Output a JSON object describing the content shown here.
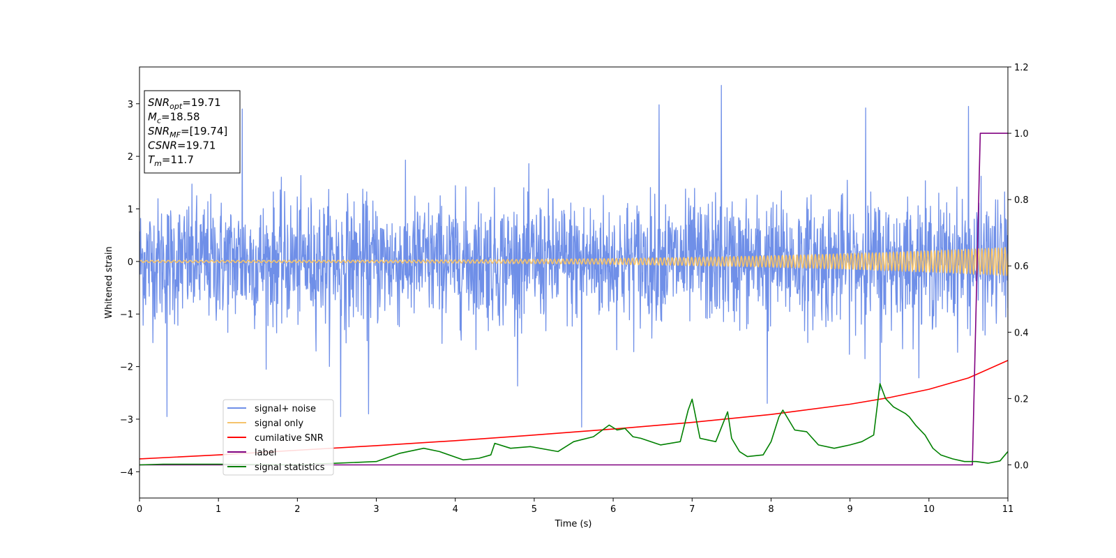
{
  "chart_data": {
    "type": "line",
    "xlabel": "Time (s)",
    "ylabel": "Whitened strain",
    "xlim": [
      0,
      11
    ],
    "ylim_left": [
      -4.5,
      3.7
    ],
    "ylim_right": [
      -0.1,
      1.2
    ],
    "x_ticks": [
      0,
      1,
      2,
      3,
      4,
      5,
      6,
      7,
      8,
      9,
      10,
      11
    ],
    "y_ticks_left": [
      3,
      2,
      1,
      0,
      -1,
      -2,
      -3,
      -4
    ],
    "y_tick_labels_left": [
      "3",
      "2",
      "1",
      "0",
      "−1",
      "−2",
      "−3",
      "−4"
    ],
    "y_ticks_right": [
      1.2,
      1.0,
      0.8,
      0.6,
      0.4,
      0.2,
      0.0
    ],
    "y_tick_labels_right": [
      "1.2",
      "1.0",
      "0.8",
      "0.6",
      "0.4",
      "0.2",
      "0.0"
    ],
    "legend_position": "lower-left",
    "annotation": {
      "lines": [
        {
          "base": "SNR",
          "sub": "opt",
          "rest": "=19.71"
        },
        {
          "base": "M",
          "sub": "c",
          "rest": "=18.58"
        },
        {
          "base": "SNR",
          "sub": "MF",
          "rest": "=[19.74]"
        },
        {
          "base": "CSNR",
          "sub": "",
          "rest": "=19.71"
        },
        {
          "base": "T",
          "sub": "m",
          "rest": "=11.7"
        }
      ]
    },
    "series": [
      {
        "name": "signal+ noise",
        "axis": "left",
        "color": "#6f8fe8",
        "kind": "noise",
        "std": 0.95,
        "peaks": [
          [
            0.35,
            -2.95
          ],
          [
            1.3,
            2.9
          ],
          [
            2.55,
            -2.95
          ],
          [
            2.9,
            -2.9
          ],
          [
            5.6,
            -3.15
          ],
          [
            6.58,
            2.98
          ],
          [
            7.37,
            3.35
          ],
          [
            7.95,
            -2.7
          ],
          [
            9.2,
            2.92
          ],
          [
            10.5,
            2.95
          ],
          [
            9.38,
            -2.45
          ]
        ]
      },
      {
        "name": "signal only",
        "axis": "left",
        "color": "#f5c36b",
        "kind": "chirp",
        "amplitude_start": 0.02,
        "amplitude_end": 0.27
      },
      {
        "name": "cumilative SNR",
        "axis": "right",
        "color": "#ff0000",
        "x": [
          0,
          1,
          2,
          3,
          4,
          5,
          6,
          7,
          8,
          9,
          9.5,
          10,
          10.5,
          11
        ],
        "y": [
          0.018,
          0.03,
          0.044,
          0.058,
          0.073,
          0.09,
          0.108,
          0.128,
          0.152,
          0.183,
          0.203,
          0.228,
          0.262,
          0.315
        ]
      },
      {
        "name": "label",
        "axis": "right",
        "color": "#800080",
        "x": [
          0,
          10.55,
          10.6,
          10.65,
          11
        ],
        "y": [
          0,
          0,
          0.5,
          1.0,
          1.0
        ]
      },
      {
        "name": "signal statistics",
        "axis": "right",
        "color": "#008000",
        "x": [
          0,
          0.3,
          1,
          2,
          2.5,
          3,
          3.3,
          3.6,
          3.8,
          4.1,
          4.3,
          4.45,
          4.5,
          4.7,
          4.95,
          5.3,
          5.5,
          5.75,
          5.95,
          6.05,
          6.15,
          6.25,
          6.35,
          6.6,
          6.85,
          6.95,
          7.0,
          7.1,
          7.3,
          7.45,
          7.5,
          7.6,
          7.7,
          7.9,
          8.0,
          8.1,
          8.15,
          8.3,
          8.45,
          8.6,
          8.8,
          8.9,
          9.0,
          9.15,
          9.3,
          9.38,
          9.45,
          9.55,
          9.7,
          9.75,
          9.83,
          9.95,
          10.05,
          10.15,
          10.3,
          10.45,
          10.6,
          10.75,
          10.9,
          11
        ],
        "y": [
          0.0,
          0.002,
          0.002,
          0.0,
          0.005,
          0.01,
          0.035,
          0.05,
          0.04,
          0.015,
          0.02,
          0.03,
          0.065,
          0.05,
          0.055,
          0.04,
          0.07,
          0.085,
          0.12,
          0.105,
          0.11,
          0.085,
          0.08,
          0.06,
          0.07,
          0.165,
          0.198,
          0.08,
          0.07,
          0.16,
          0.08,
          0.04,
          0.025,
          0.03,
          0.07,
          0.145,
          0.165,
          0.105,
          0.1,
          0.06,
          0.05,
          0.055,
          0.06,
          0.07,
          0.09,
          0.245,
          0.2,
          0.175,
          0.155,
          0.145,
          0.12,
          0.09,
          0.05,
          0.03,
          0.018,
          0.01,
          0.01,
          0.005,
          0.012,
          0.04
        ]
      }
    ]
  }
}
